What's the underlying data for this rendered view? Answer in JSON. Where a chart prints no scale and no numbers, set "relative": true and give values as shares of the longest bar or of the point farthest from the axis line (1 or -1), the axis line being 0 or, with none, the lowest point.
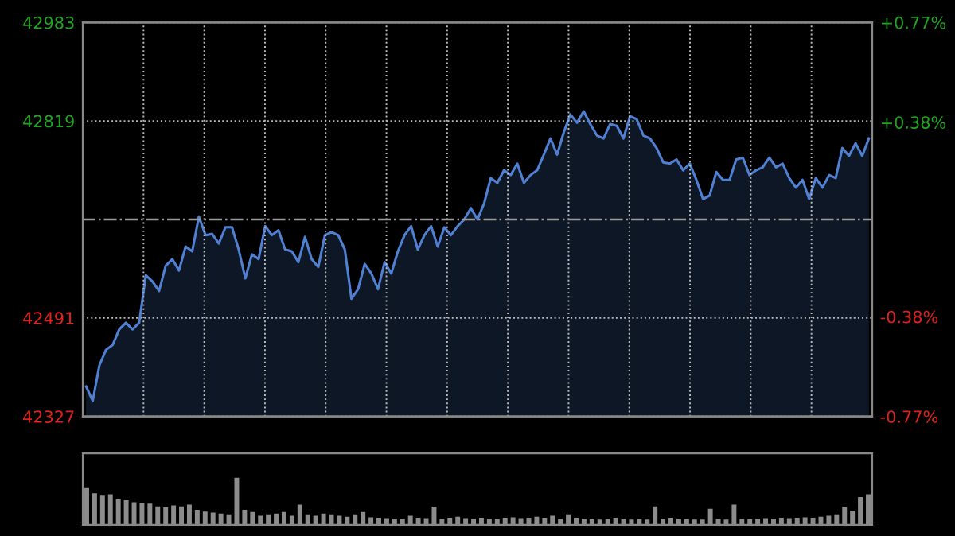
{
  "chart_data": [
    {
      "type": "area",
      "color": "#4f80d2",
      "categories": [
        null,
        null,
        null,
        null,
        null,
        null,
        null,
        null,
        null,
        null,
        null,
        null,
        null,
        null,
        null,
        null,
        null,
        null,
        null,
        null,
        null,
        null,
        null,
        null,
        null,
        null,
        null,
        null,
        null,
        null,
        null,
        null,
        null,
        null,
        null,
        null,
        null,
        null,
        null,
        null,
        null,
        null,
        null,
        null,
        null,
        null,
        null,
        null,
        null,
        null,
        null,
        null,
        null,
        null,
        null,
        null,
        null,
        null,
        null,
        null,
        null,
        null,
        null,
        null,
        null,
        null,
        null,
        null,
        null,
        null,
        null,
        null,
        null,
        null,
        null,
        null,
        null,
        null,
        null,
        null,
        null,
        null,
        null,
        null,
        null,
        null,
        null,
        null,
        null,
        null,
        null,
        null,
        null,
        null,
        null,
        null,
        null,
        null,
        null,
        null,
        null,
        null,
        null,
        null,
        null,
        null,
        null,
        null,
        null,
        null,
        null,
        null,
        null,
        null,
        null,
        null,
        null,
        null,
        null
      ],
      "values": [
        42377,
        42353,
        42412,
        42438,
        42446,
        42472,
        42483,
        42472,
        42483,
        42562,
        42552,
        42536,
        42578,
        42589,
        42570,
        42610,
        42602,
        42660,
        42629,
        42631,
        42615,
        42642,
        42642,
        42605,
        42557,
        42597,
        42589,
        42644,
        42629,
        42637,
        42605,
        42602,
        42584,
        42626,
        42589,
        42576,
        42629,
        42634,
        42629,
        42605,
        42523,
        42539,
        42581,
        42565,
        42539,
        42584,
        42565,
        42602,
        42629,
        42644,
        42605,
        42629,
        42644,
        42610,
        42642,
        42629,
        42644,
        42655,
        42674,
        42655,
        42682,
        42724,
        42716,
        42737,
        42729,
        42748,
        42716,
        42729,
        42737,
        42763,
        42790,
        42763,
        42800,
        42830,
        42816,
        42835,
        42814,
        42795,
        42790,
        42814,
        42811,
        42790,
        42827,
        42822,
        42795,
        42790,
        42774,
        42750,
        42748,
        42755,
        42737,
        42748,
        42721,
        42689,
        42695,
        42734,
        42721,
        42721,
        42755,
        42758,
        42729,
        42737,
        42742,
        42758,
        42742,
        42748,
        42724,
        42708,
        42721,
        42689,
        42724,
        42708,
        42729,
        42724,
        42774,
        42761,
        42782,
        42761,
        42790
      ],
      "ylim": [
        42327,
        42983
      ],
      "yticks": [
        42327,
        42491,
        42819,
        42983
      ],
      "y2lim": [
        -0.77,
        0.77
      ],
      "y2ticks": [
        {
          "value": -0.77,
          "label": "-0.77%"
        },
        {
          "value": -0.38,
          "label": "-0.38%"
        },
        {
          "value": 0.38,
          "label": "+0.38%"
        },
        {
          "value": 0.77,
          "label": "+0.77%"
        }
      ],
      "ref_lines": [
        {
          "axis": "y",
          "value": 42655,
          "color": "#9a9a9a",
          "line_style": "dashdot"
        }
      ],
      "grid": true,
      "legend": false
    },
    {
      "type": "bar",
      "relative": true,
      "color": "#8c8c8c",
      "categories": [
        null,
        null,
        null,
        null,
        null,
        null,
        null,
        null,
        null,
        null,
        null,
        null,
        null,
        null,
        null,
        null,
        null,
        null,
        null,
        null,
        null,
        null,
        null,
        null,
        null,
        null,
        null,
        null,
        null,
        null,
        null,
        null,
        null,
        null,
        null,
        null,
        null,
        null,
        null,
        null,
        null,
        null,
        null,
        null,
        null,
        null,
        null,
        null,
        null,
        null,
        null,
        null,
        null,
        null,
        null,
        null,
        null,
        null,
        null,
        null,
        null,
        null,
        null,
        null,
        null,
        null,
        null,
        null,
        null,
        null,
        null,
        null,
        null,
        null,
        null,
        null,
        null,
        null,
        null,
        null,
        null,
        null,
        null,
        null,
        null,
        null,
        null,
        null,
        null,
        null,
        null,
        null,
        null,
        null,
        null,
        null,
        null,
        null,
        null,
        null
      ],
      "values": [
        0.78,
        0.67,
        0.62,
        0.65,
        0.54,
        0.52,
        0.48,
        0.47,
        0.45,
        0.39,
        0.37,
        0.41,
        0.39,
        0.43,
        0.32,
        0.28,
        0.26,
        0.24,
        0.22,
        1,
        0.32,
        0.27,
        0.19,
        0.22,
        0.24,
        0.27,
        0.19,
        0.43,
        0.22,
        0.19,
        0.24,
        0.22,
        0.19,
        0.17,
        0.22,
        0.27,
        0.16,
        0.15,
        0.14,
        0.13,
        0.13,
        0.19,
        0.15,
        0.14,
        0.38,
        0.13,
        0.15,
        0.17,
        0.14,
        0.13,
        0.15,
        0.13,
        0.12,
        0.15,
        0.16,
        0.14,
        0.15,
        0.17,
        0.15,
        0.19,
        0.13,
        0.22,
        0.15,
        0.13,
        0.12,
        0.11,
        0.13,
        0.15,
        0.12,
        0.11,
        0.13,
        0.11,
        0.39,
        0.13,
        0.15,
        0.13,
        0.12,
        0.11,
        0.11,
        0.34,
        0.13,
        0.11,
        0.43,
        0.13,
        0.12,
        0.13,
        0.14,
        0.13,
        0.15,
        0.14,
        0.15,
        0.16,
        0.15,
        0.17,
        0.19,
        0.22,
        0.38,
        0.3,
        0.59,
        0.65
      ]
    }
  ]
}
